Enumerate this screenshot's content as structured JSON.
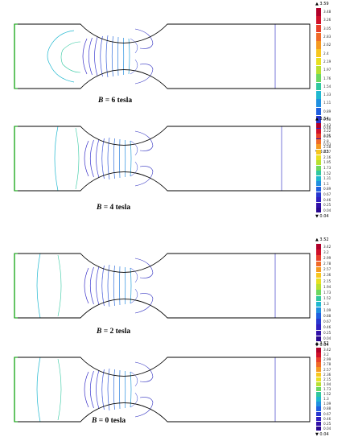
{
  "panels": [
    {
      "id": "b6",
      "title_label": "B",
      "title_rest": " = 6 tesla",
      "legend": {
        "max": "▲ 3.59",
        "min": "▼ 0.03",
        "ticks": [
          "3.48",
          "3.26",
          "3.05",
          "2.83",
          "2.62",
          "2.4",
          "2.19",
          "1.97",
          "1.76",
          "1.54",
          "1.33",
          "1.11",
          "0.89",
          "0.68",
          "0.46",
          "0.25",
          "0.03"
        ]
      }
    },
    {
      "id": "b4",
      "title_label": "B",
      "title_rest": " = 4 tesla",
      "legend": {
        "max": "▲ 3.54",
        "min": "▼ 0.04",
        "ticks": [
          "3.43",
          "3.22",
          "3.01",
          "2.8",
          "2.58",
          "2.37",
          "2.16",
          "1.95",
          "1.73",
          "1.52",
          "1.31",
          "1.1",
          "0.89",
          "0.67",
          "0.46",
          "0.25",
          "0.04"
        ]
      }
    },
    {
      "id": "b2",
      "title_label": "B",
      "title_rest": " = 2 tesla",
      "legend": {
        "max": "▲ 3.52",
        "min": "▼ 0.04",
        "ticks": [
          "3.42",
          "3.2",
          "2.99",
          "2.78",
          "2.57",
          "2.36",
          "2.15",
          "1.94",
          "1.73",
          "1.52",
          "1.3",
          "1.09",
          "0.88",
          "0.67",
          "0.46",
          "0.25",
          "0.04"
        ]
      }
    },
    {
      "id": "b0",
      "title_label": "B",
      "title_rest": " = 0 tesla",
      "legend": {
        "max": "▲ 3.52",
        "min": "▼ 0.04",
        "ticks": [
          "3.42",
          "3.2",
          "2.99",
          "2.78",
          "2.57",
          "2.36",
          "2.15",
          "1.94",
          "1.73",
          "1.52",
          "1.3",
          "1.09",
          "0.88",
          "0.67",
          "0.46",
          "0.25",
          "0.04"
        ]
      }
    }
  ],
  "colors": {
    "outline": "#000000",
    "inlet": "#22aa22",
    "legend_scale": [
      "#b0002a",
      "#d0102a",
      "#e8402a",
      "#f06a28",
      "#f59a20",
      "#f7c61e",
      "#e8e020",
      "#b8e030",
      "#6cd860",
      "#30c8a0",
      "#20b8d0",
      "#2090e0",
      "#2060e0",
      "#2838d0",
      "#3020c0",
      "#3010a8",
      "#2a0890"
    ]
  }
}
